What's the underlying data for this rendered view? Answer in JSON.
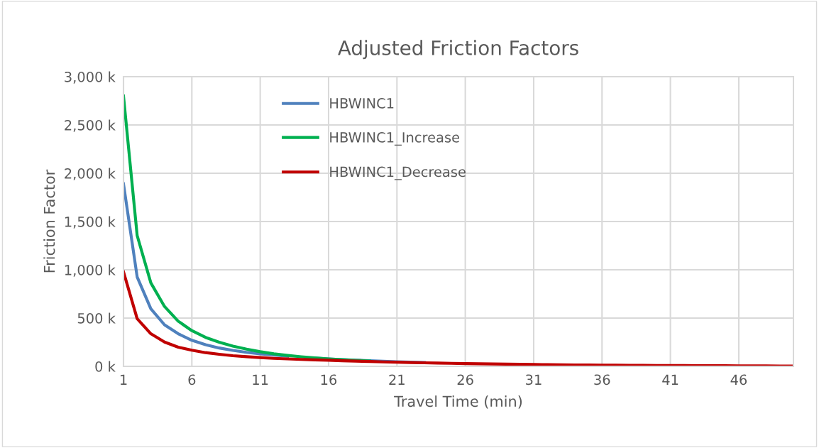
{
  "chart_data": {
    "type": "line",
    "title": "Adjusted Friction Factors",
    "xlabel": "Travel Time (min)",
    "ylabel": "Friction Factor",
    "x": [
      1,
      2,
      3,
      4,
      5,
      6,
      7,
      8,
      9,
      10,
      11,
      12,
      13,
      14,
      15,
      16,
      17,
      18,
      19,
      20,
      21,
      22,
      23,
      24,
      25,
      26,
      27,
      28,
      29,
      30,
      31,
      32,
      33,
      34,
      35,
      36,
      37,
      38,
      39,
      40,
      41,
      42,
      43,
      44,
      45,
      46,
      47,
      48,
      49,
      50
    ],
    "series": [
      {
        "name": "HBWINC1",
        "color": "#4f81bd",
        "values": [
          1890,
          926,
          596,
          430,
          338,
          270,
          225,
          190,
          165,
          145,
          130,
          118,
          105,
          null,
          85,
          77,
          70,
          64,
          58,
          53,
          48,
          44,
          40,
          null,
          null,
          null,
          null,
          null,
          null,
          null,
          null,
          null,
          null,
          null,
          null,
          null,
          null,
          null,
          null,
          null,
          null,
          null,
          null,
          null,
          null,
          null,
          null,
          null,
          null,
          null
        ]
      },
      {
        "name": "HBWINC1_Increase",
        "color": "#00b050",
        "values": [
          2800,
          1355,
          865,
          620,
          468,
          370,
          300,
          250,
          210,
          178,
          152,
          130,
          113,
          99,
          87,
          77,
          69,
          62,
          56,
          null,
          null,
          null,
          null,
          null,
          null,
          null,
          null,
          null,
          null,
          null,
          null,
          null,
          null,
          null,
          null,
          null,
          null,
          null,
          null,
          null,
          null,
          null,
          null,
          null,
          null,
          null,
          null,
          null,
          null,
          null
        ]
      },
      {
        "name": "HBWINC1_Decrease",
        "color": "#c00000",
        "values": [
          980,
          493,
          338,
          252,
          199,
          167,
          142,
          125,
          110,
          100,
          91,
          83,
          77,
          72,
          67,
          63,
          58,
          54,
          50,
          46,
          43,
          40,
          37,
          34,
          31,
          29,
          27,
          25,
          23,
          21,
          19,
          18,
          16,
          15,
          14,
          13,
          12,
          11,
          10,
          9,
          8,
          8,
          7,
          6,
          6,
          5,
          4,
          4,
          3,
          3
        ]
      }
    ],
    "xlim": [
      1,
      50
    ],
    "xticks": [
      1,
      6,
      11,
      16,
      21,
      26,
      31,
      36,
      41,
      46
    ],
    "ylim": [
      0,
      3000
    ],
    "yticks": [
      {
        "value": 0,
        "label": "0 k"
      },
      {
        "value": 500,
        "label": "500 k"
      },
      {
        "value": 1000,
        "label": "1,000 k"
      },
      {
        "value": 1500,
        "label": "1,500 k"
      },
      {
        "value": 2000,
        "label": "2,000 k"
      },
      {
        "value": 2500,
        "label": "2,500 k"
      },
      {
        "value": 3000,
        "label": "3,000 k"
      }
    ],
    "grid": true,
    "legend": "top",
    "marker": "none",
    "line_style": "solid"
  }
}
